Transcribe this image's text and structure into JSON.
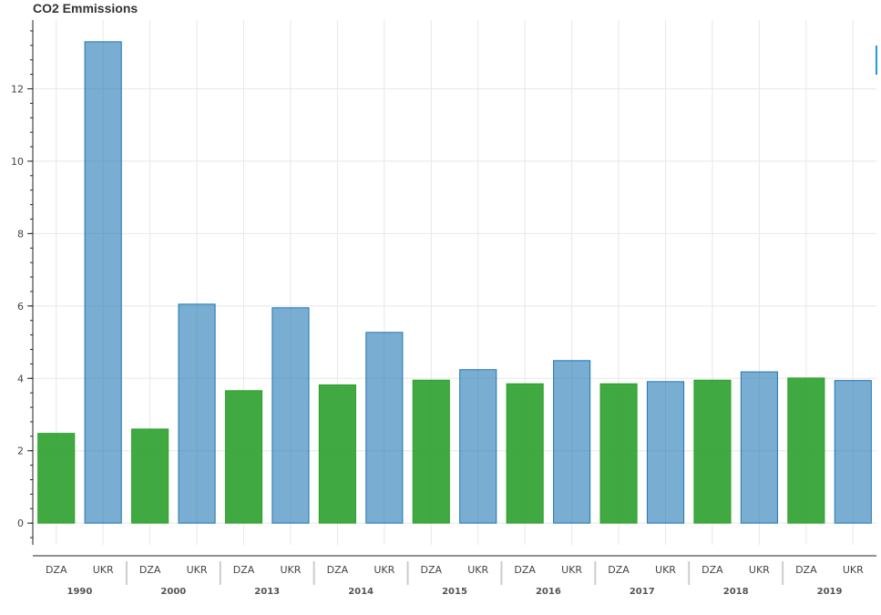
{
  "chart_data": {
    "type": "bar",
    "title": "CO2 Emmissions",
    "categories": [
      "1990",
      "2000",
      "2013",
      "2014",
      "2015",
      "2016",
      "2017",
      "2018",
      "2019"
    ],
    "subcategories": [
      "DZA",
      "UKR"
    ],
    "series": [
      {
        "values": [
          2.48,
          2.6,
          3.66,
          3.82,
          3.95,
          3.85,
          3.85,
          3.95,
          4.01
        ]
      },
      {
        "values": [
          13.3,
          6.05,
          5.95,
          5.27,
          4.24,
          4.49,
          3.91,
          4.18,
          3.94
        ]
      }
    ],
    "yticks": [
      0,
      2,
      4,
      6,
      8,
      10,
      12
    ],
    "ylim": [
      -0.6,
      13.9
    ],
    "xlabel": "",
    "ylabel": "",
    "grid": true,
    "colors": {
      "series": [
        "#2ca02c",
        "#1f77b4"
      ],
      "series_opacity": [
        0.9,
        0.6
      ],
      "legend_mark": "#1f9bd4",
      "grid": "#e8e8e8",
      "axis": "#222222"
    }
  }
}
